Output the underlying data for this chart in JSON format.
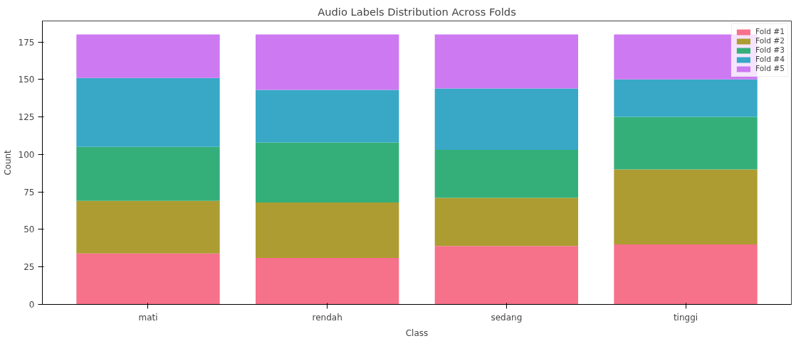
{
  "chart_data": {
    "type": "bar",
    "stacked": true,
    "title": "Audio Labels Distribution Across Folds",
    "xlabel": "Class",
    "ylabel": "Count",
    "categories": [
      "mati",
      "rendah",
      "sedang",
      "tinggi"
    ],
    "series": [
      {
        "name": "Fold #1",
        "color": "#f6718a",
        "values": [
          34,
          31,
          39,
          40
        ]
      },
      {
        "name": "Fold #2",
        "color": "#ad9c31",
        "values": [
          35,
          37,
          32,
          50
        ]
      },
      {
        "name": "Fold #3",
        "color": "#34af79",
        "values": [
          36,
          40,
          32,
          35
        ]
      },
      {
        "name": "Fold #4",
        "color": "#38a8c6",
        "values": [
          46,
          35,
          41,
          25
        ]
      },
      {
        "name": "Fold #5",
        "color": "#cd79f2",
        "values": [
          29,
          37,
          36,
          30
        ]
      }
    ],
    "ylim": [
      0,
      189
    ],
    "yticks": [
      0,
      25,
      50,
      75,
      100,
      125,
      150,
      175
    ],
    "grid": false,
    "legend": "top right"
  }
}
